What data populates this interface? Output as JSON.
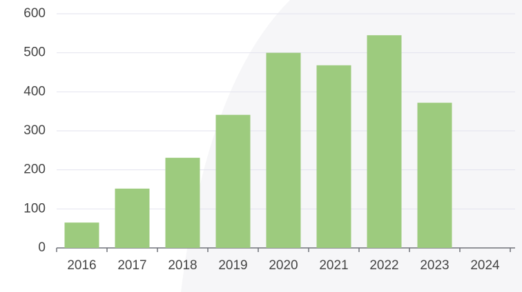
{
  "chart_data": {
    "type": "bar",
    "categories": [
      "2016",
      "2017",
      "2018",
      "2019",
      "2020",
      "2021",
      "2022",
      "2023",
      "2024"
    ],
    "values": [
      65,
      152,
      231,
      341,
      500,
      468,
      545,
      372,
      null
    ],
    "color": "#9dcb7e",
    "ylim": [
      0,
      600
    ],
    "yticks": [
      0,
      100,
      200,
      300,
      400,
      500,
      600
    ],
    "grid": true
  }
}
